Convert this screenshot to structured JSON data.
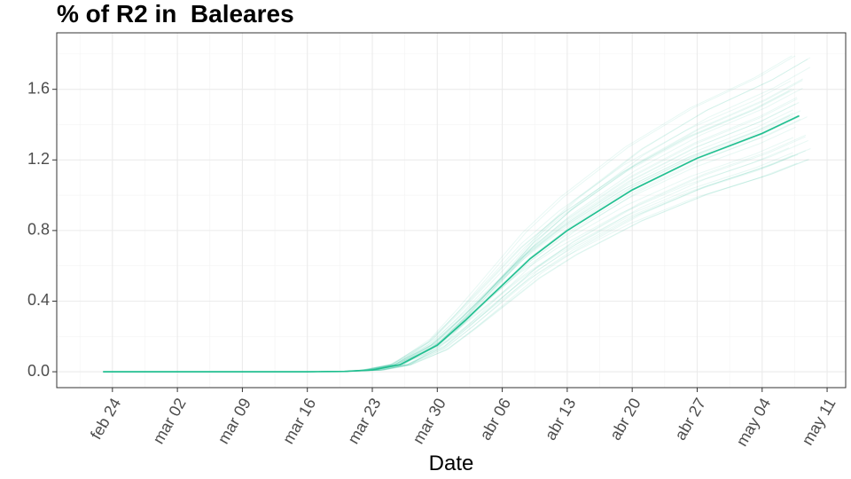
{
  "chart_data": {
    "type": "line",
    "title": "% of R2 in  Baleares",
    "xlabel": "Date",
    "ylabel": "",
    "x_ticks": [
      "feb 24",
      "mar 02",
      "mar 09",
      "mar 16",
      "mar 23",
      "mar 30",
      "abr 06",
      "abr 13",
      "abr 20",
      "abr 27",
      "may 04",
      "may 11"
    ],
    "y_ticks": [
      "0.0",
      "0.4",
      "0.8",
      "1.2",
      "1.6"
    ],
    "ylim": [
      -0.09,
      1.92
    ],
    "xlim": [
      "2020-02-18",
      "2020-05-13"
    ],
    "grid": true,
    "color": "#1fbf8f",
    "series": [
      {
        "role": "median",
        "points": [
          [
            "2020-02-23",
            0.0
          ],
          [
            "2020-03-16",
            0.0
          ],
          [
            "2020-03-20",
            0.002
          ],
          [
            "2020-03-23",
            0.01
          ],
          [
            "2020-03-26",
            0.04
          ],
          [
            "2020-03-30",
            0.15
          ],
          [
            "2020-04-02",
            0.29
          ],
          [
            "2020-04-06",
            0.49
          ],
          [
            "2020-04-09",
            0.64
          ],
          [
            "2020-04-13",
            0.8
          ],
          [
            "2020-04-20",
            1.03
          ],
          [
            "2020-04-27",
            1.21
          ],
          [
            "2020-05-04",
            1.35
          ],
          [
            "2020-05-08",
            1.45
          ]
        ]
      }
    ],
    "ensemble": {
      "count": 40,
      "end_range": [
        1.15,
        1.82
      ],
      "opacity": 0.1
    }
  }
}
